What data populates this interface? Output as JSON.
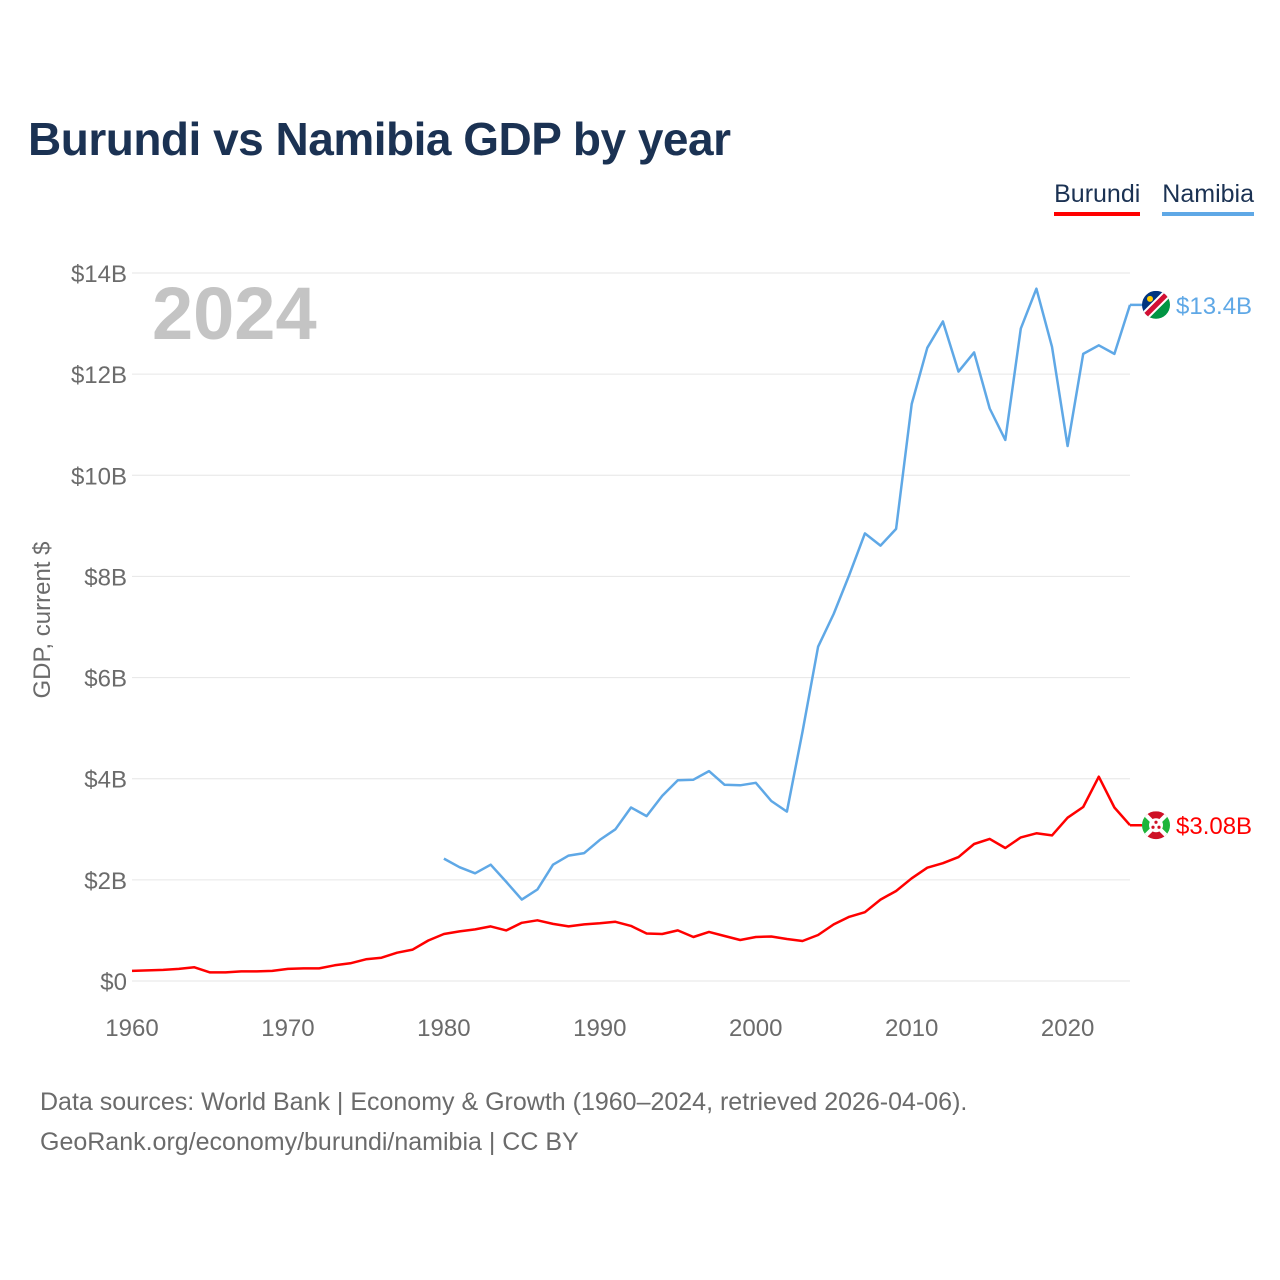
{
  "title": "Burundi vs Namibia GDP by year",
  "legend": {
    "burundi": "Burundi",
    "namibia": "Namibia"
  },
  "year_label": "2024",
  "footer": {
    "line1": "Data sources: World Bank | Economy & Growth (1960–2024, retrieved 2026-04-06).",
    "line2": "GeoRank.org/economy/burundi/namibia | CC BY"
  },
  "colors": {
    "burundi": "#ff0000",
    "namibia": "#5fa8e6",
    "title": "#1b3253",
    "grid": "#e6e6e6",
    "axis_text": "#6b6b6b"
  },
  "chart_data": {
    "type": "line",
    "title": "Burundi vs Namibia GDP by year",
    "xlabel": "",
    "ylabel": "GDP, current $",
    "xlim": [
      1960,
      2024
    ],
    "ylim": [
      0,
      14
    ],
    "y_unit": "billions USD",
    "x_ticks": [
      1960,
      1970,
      1980,
      1990,
      2000,
      2010,
      2020
    ],
    "y_ticks": [
      0,
      2,
      4,
      6,
      8,
      10,
      12,
      14
    ],
    "y_tick_labels": [
      "$0",
      "$2B",
      "$4B",
      "$6B",
      "$8B",
      "$10B",
      "$12B",
      "$14B"
    ],
    "grid": true,
    "legend_position": "top-right",
    "series": [
      {
        "name": "Burundi",
        "color": "#ff0000",
        "end_label": "$3.08B",
        "x": [
          1960,
          1961,
          1962,
          1963,
          1964,
          1965,
          1966,
          1967,
          1968,
          1969,
          1970,
          1971,
          1972,
          1973,
          1974,
          1975,
          1976,
          1977,
          1978,
          1979,
          1980,
          1981,
          1982,
          1983,
          1984,
          1985,
          1986,
          1987,
          1988,
          1989,
          1990,
          1991,
          1992,
          1993,
          1994,
          1995,
          1996,
          1997,
          1998,
          1999,
          2000,
          2001,
          2002,
          2003,
          2004,
          2005,
          2006,
          2007,
          2008,
          2009,
          2010,
          2011,
          2012,
          2013,
          2014,
          2015,
          2016,
          2017,
          2018,
          2019,
          2020,
          2021,
          2022,
          2023,
          2024
        ],
        "values": [
          0.2,
          0.21,
          0.22,
          0.24,
          0.27,
          0.17,
          0.17,
          0.19,
          0.19,
          0.2,
          0.24,
          0.25,
          0.25,
          0.31,
          0.35,
          0.43,
          0.46,
          0.56,
          0.62,
          0.8,
          0.93,
          0.98,
          1.02,
          1.08,
          1.0,
          1.15,
          1.2,
          1.13,
          1.08,
          1.12,
          1.14,
          1.17,
          1.09,
          0.94,
          0.93,
          1.0,
          0.87,
          0.97,
          0.89,
          0.81,
          0.87,
          0.88,
          0.83,
          0.79,
          0.91,
          1.12,
          1.27,
          1.36,
          1.61,
          1.78,
          2.03,
          2.24,
          2.33,
          2.45,
          2.71,
          2.81,
          2.63,
          2.84,
          2.92,
          2.88,
          3.23,
          3.44,
          4.04,
          3.43,
          3.08
        ]
      },
      {
        "name": "Namibia",
        "color": "#5fa8e6",
        "end_label": "$13.4B",
        "x": [
          1980,
          1981,
          1982,
          1983,
          1984,
          1985,
          1986,
          1987,
          1988,
          1989,
          1990,
          1991,
          1992,
          1993,
          1994,
          1995,
          1996,
          1997,
          1998,
          1999,
          2000,
          2001,
          2002,
          2003,
          2004,
          2005,
          2006,
          2007,
          2008,
          2009,
          2010,
          2011,
          2012,
          2013,
          2014,
          2015,
          2016,
          2017,
          2018,
          2019,
          2020,
          2021,
          2022,
          2023,
          2024
        ],
        "values": [
          2.42,
          2.25,
          2.13,
          2.3,
          1.96,
          1.61,
          1.81,
          2.3,
          2.48,
          2.53,
          2.79,
          3.0,
          3.43,
          3.26,
          3.66,
          3.97,
          3.98,
          4.15,
          3.88,
          3.87,
          3.92,
          3.56,
          3.35,
          4.93,
          6.61,
          7.26,
          8.03,
          8.85,
          8.61,
          8.94,
          11.41,
          12.52,
          13.04,
          12.05,
          12.43,
          11.32,
          10.7,
          12.9,
          13.69,
          12.54,
          10.58,
          12.4,
          12.57,
          12.4,
          13.37
        ]
      }
    ]
  }
}
